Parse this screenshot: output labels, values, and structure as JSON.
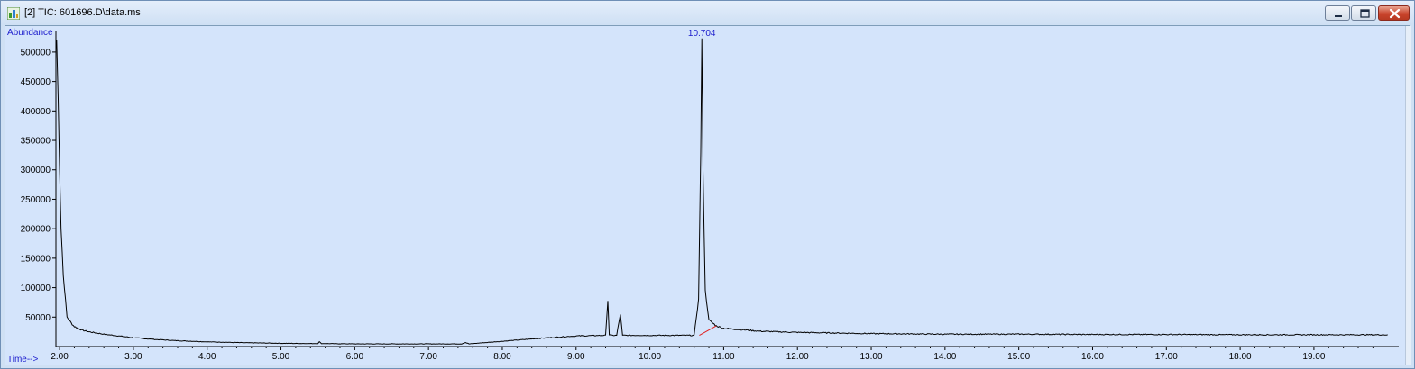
{
  "window": {
    "title": "[2] TIC: 601696.D\\data.ms",
    "controls": [
      "minimize",
      "maximize",
      "close"
    ]
  },
  "colors": {
    "plot_background": "#d4e4fb",
    "trace": "#000000",
    "baseline_marker": "#e02020",
    "label_accent": "#1a1acc"
  },
  "chart_data": {
    "type": "line",
    "xlabel": "Time-->",
    "ylabel": "Abundance",
    "xlim": [
      1.95,
      20.15
    ],
    "ylim": [
      0,
      535000
    ],
    "x_ticks": [
      "2.00",
      "3.00",
      "4.00",
      "5.00",
      "6.00",
      "7.00",
      "8.00",
      "9.00",
      "10.00",
      "11.00",
      "12.00",
      "13.00",
      "14.00",
      "15.00",
      "16.00",
      "17.00",
      "18.00",
      "19.00"
    ],
    "y_ticks": [
      "50000",
      "100000",
      "150000",
      "200000",
      "250000",
      "300000",
      "350000",
      "400000",
      "450000",
      "500000"
    ],
    "annotations": [
      {
        "text": "10.704",
        "x": 10.704
      }
    ],
    "series": [
      {
        "x": [
          1.96,
          1.98,
          2.0,
          2.02,
          2.05,
          2.08,
          2.1,
          2.13,
          2.17,
          2.2,
          2.3,
          2.4,
          2.6,
          2.8,
          3.0,
          3.3,
          3.6,
          4.0,
          4.5,
          5.0,
          5.5,
          5.52,
          5.55,
          5.6,
          6.0,
          6.5,
          7.0,
          7.45,
          7.5,
          7.55,
          8.0,
          8.5,
          9.0,
          9.4,
          9.43,
          9.45,
          9.48,
          9.55,
          9.6,
          9.63,
          9.7,
          10.0,
          10.3,
          10.6,
          10.66,
          10.69,
          10.704,
          10.72,
          10.75,
          10.8,
          10.9,
          11.0,
          11.5,
          12.0,
          13.0,
          14.0,
          15.0,
          16.0,
          17.0,
          18.0,
          19.0,
          20.0
        ],
        "y": [
          520000,
          420000,
          300000,
          200000,
          120000,
          80000,
          50000,
          45000,
          38000,
          34000,
          28000,
          25000,
          21000,
          18000,
          15000,
          12000,
          10000,
          8000,
          6500,
          5500,
          5000,
          8000,
          5000,
          5000,
          4500,
          4500,
          4500,
          4500,
          7000,
          4500,
          9000,
          14000,
          18000,
          19000,
          78000,
          20000,
          19000,
          19000,
          55000,
          19000,
          19000,
          19000,
          19000,
          19000,
          80000,
          330000,
          522000,
          300000,
          95000,
          45000,
          35000,
          31000,
          26000,
          24000,
          22000,
          21000,
          21000,
          20500,
          20500,
          20000,
          20000,
          20000
        ]
      }
    ],
    "baseline_segment": {
      "x": [
        10.67,
        10.9
      ],
      "y": [
        19000,
        35000
      ]
    }
  }
}
